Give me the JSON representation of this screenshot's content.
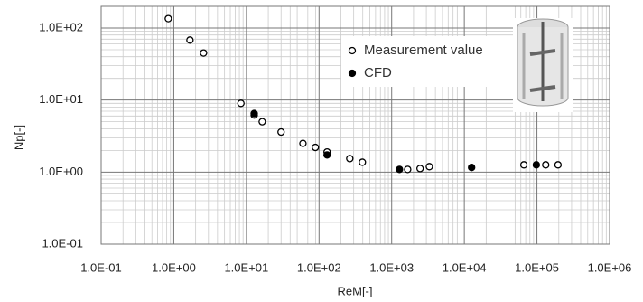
{
  "chart_data": {
    "type": "scatter",
    "x_label": "ReM[-]",
    "y_label": "Np[-]",
    "log_x": true,
    "log_y": true,
    "grid": true,
    "minor_grid": true,
    "legend": "upper right",
    "xlim": [
      0.1,
      1000000
    ],
    "ylim": [
      0.1,
      200
    ],
    "xticks": [
      {
        "value": 0.1,
        "label": "1.0E-01"
      },
      {
        "value": 1,
        "label": "1.0E+00"
      },
      {
        "value": 10,
        "label": "1.0E+01"
      },
      {
        "value": 100,
        "label": "1.0E+02"
      },
      {
        "value": 1000,
        "label": "1.0E+03"
      },
      {
        "value": 10000,
        "label": "1.0E+04"
      },
      {
        "value": 100000,
        "label": "1.0E+05"
      },
      {
        "value": 1000000,
        "label": "1.0E+06"
      }
    ],
    "yticks": [
      {
        "value": 0.1,
        "label": "1.0E-01"
      },
      {
        "value": 1,
        "label": "1.0E+00"
      },
      {
        "value": 10,
        "label": "1.0E+01"
      },
      {
        "value": 100,
        "label": "1.0E+02"
      }
    ],
    "series": [
      {
        "name": "Measurement value",
        "color": "#000000",
        "marker": "open",
        "x": [
          0.84,
          1.67,
          2.57,
          8.4,
          12.8,
          16.5,
          30,
          60,
          89,
          129,
          265,
          395,
          1660,
          2460,
          3300,
          66000,
          132000,
          195000
        ],
        "values": [
          135,
          68,
          45,
          9.0,
          6.2,
          5.0,
          3.6,
          2.5,
          2.2,
          1.9,
          1.54,
          1.37,
          1.09,
          1.12,
          1.19,
          1.26,
          1.26,
          1.26
        ]
      },
      {
        "name": "CFD",
        "color": "#000000",
        "marker": "filled",
        "x": [
          12.8,
          129,
          1280,
          12600,
          98000
        ],
        "values": [
          6.5,
          1.73,
          1.09,
          1.16,
          1.26
        ]
      }
    ]
  }
}
